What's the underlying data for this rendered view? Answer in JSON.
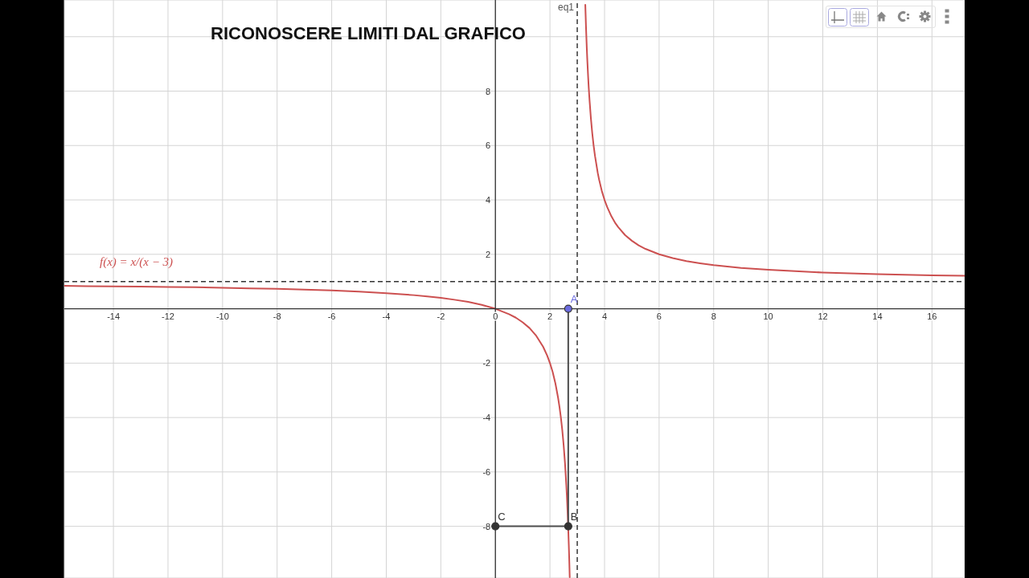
{
  "chart_data": {
    "type": "line",
    "title": "RICONOSCERE LIMITI DAL GRAFICO",
    "xlim": [
      -15.8,
      17.2
    ],
    "ylim": [
      -9.9,
      11.35
    ],
    "xticks": [
      -14,
      -12,
      -10,
      -8,
      -6,
      -4,
      -2,
      0,
      2,
      4,
      6,
      8,
      10,
      12,
      14,
      16
    ],
    "yticks": [
      -8,
      -6,
      -4,
      -2,
      {
        "value": 0,
        "label": null
      },
      2,
      4,
      6,
      8,
      {
        "value": 10,
        "label": null
      }
    ],
    "grid": true,
    "marker": "none",
    "series": [
      {
        "name": "f(x) = x/(x − 3)",
        "color": "#cc5050",
        "x": [
          -15.8,
          -15,
          -14,
          -13,
          -12,
          -11,
          -10,
          -9,
          -8,
          -7,
          -6,
          -5,
          -4,
          -3,
          -2.5,
          -2,
          -1.5,
          -1,
          -0.5,
          0,
          0.5,
          0.75,
          1,
          1.25,
          1.5,
          1.75,
          1.9,
          2,
          2.1,
          2.2,
          2.3,
          2.35,
          2.4,
          2.45,
          2.5,
          2.55,
          2.6,
          2.62,
          2.65,
          2.67,
          2.69,
          2.7,
          2.71,
          2.724,
          3,
          3.295,
          3.32,
          3.35,
          3.37,
          3.4,
          3.42,
          3.45,
          3.5,
          3.55,
          3.6,
          3.65,
          3.75,
          3.8,
          3.9,
          4,
          4.1,
          4.25,
          4.4,
          4.5,
          4.75,
          5,
          5.25,
          5.5,
          6,
          6.5,
          7,
          7.5,
          8,
          9,
          10,
          12,
          14,
          16,
          17.2
        ],
        "values": [
          0.84,
          0.83,
          0.82,
          0.81,
          0.8,
          0.79,
          0.77,
          0.75,
          0.73,
          0.7,
          0.67,
          0.63,
          0.57,
          0.5,
          0.45,
          0.4,
          0.33,
          0.25,
          0.14,
          0,
          -0.2,
          -0.33,
          -0.5,
          -0.71,
          -1,
          -1.4,
          -1.73,
          -2,
          -2.33,
          -2.75,
          -3.29,
          -3.62,
          -4,
          -4.45,
          -5,
          -5.67,
          -6.5,
          -6.89,
          -7.57,
          -8.09,
          -8.68,
          -9,
          -9.34,
          -9.87,
          null,
          11.17,
          10.38,
          9.57,
          9.11,
          8.5,
          8.14,
          7.67,
          7,
          6.45,
          6,
          5.62,
          5,
          4.75,
          4.33,
          4,
          3.73,
          3.4,
          3.14,
          3,
          2.71,
          2.5,
          2.33,
          2.2,
          2,
          1.86,
          1.75,
          1.67,
          1.6,
          1.5,
          1.43,
          1.33,
          1.27,
          1.23,
          1.21
        ]
      },
      {
        "color": "#4d4d4d",
        "x": [
          2.67,
          2.67,
          0
        ],
        "values": [
          0,
          -8,
          -8
        ]
      },
      {
        "type": "scatter",
        "marker": "circle",
        "color": "#333333",
        "colors": [
          "#6b6bdf",
          "#333333",
          "#333333"
        ],
        "x": [
          2.67,
          2.67,
          0
        ],
        "values": [
          0,
          -8,
          -8
        ],
        "value_labels": [
          "A",
          "B",
          "C"
        ]
      }
    ],
    "ref_lines": [
      {
        "axis": "x",
        "value": 3,
        "label": "eq1",
        "color": "#444444",
        "line_style": "dashed"
      },
      {
        "axis": "y",
        "value": 1,
        "color": "#333333",
        "line_style": "dashed"
      }
    ]
  }
}
